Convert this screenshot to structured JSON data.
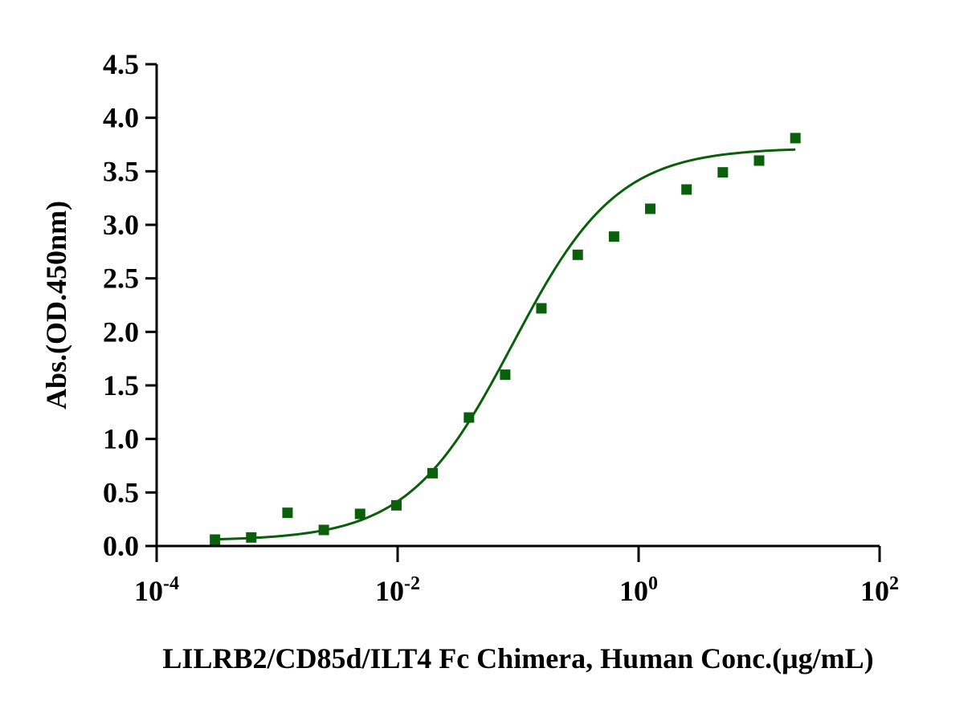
{
  "chart_data": {
    "type": "scatter",
    "title": "",
    "xlabel": "LILRB2/CD85d/ILT4 Fc Chimera, Human Conc.(μg/mL)",
    "ylabel": "Abs.(OD.450nm)",
    "x_scale": "log10",
    "xlim": [
      0.0001,
      100
    ],
    "ylim": [
      0,
      4.5
    ],
    "grid": false,
    "x_ticks": [
      {
        "base": "10",
        "exp": "-4",
        "value": 0.0001
      },
      {
        "base": "10",
        "exp": "-2",
        "value": 0.01
      },
      {
        "base": "10",
        "exp": "0",
        "value": 1
      },
      {
        "base": "10",
        "exp": "2",
        "value": 100
      }
    ],
    "y_ticks": [
      "0.0",
      "0.5",
      "1.0",
      "1.5",
      "2.0",
      "2.5",
      "3.0",
      "3.5",
      "4.0",
      "4.5"
    ],
    "colors": {
      "series": "#0a5f0a"
    },
    "series": [
      {
        "marker": "square",
        "x": [
          0.000305,
          0.00061,
          0.00122,
          0.00244,
          0.00488,
          0.00977,
          0.0195,
          0.0391,
          0.0781,
          0.156,
          0.3125,
          0.625,
          1.25,
          2.5,
          5,
          10,
          20
        ],
        "y": [
          0.06,
          0.08,
          0.31,
          0.15,
          0.3,
          0.38,
          0.68,
          1.2,
          1.6,
          2.22,
          2.72,
          2.89,
          3.15,
          3.33,
          3.49,
          3.6,
          3.81
        ]
      }
    ],
    "fit": {
      "type": "4PL",
      "bottom": 0.05,
      "top": 3.72,
      "ec50": 0.09,
      "hill": 1.0,
      "x_range": [
        0.000305,
        20
      ]
    }
  }
}
